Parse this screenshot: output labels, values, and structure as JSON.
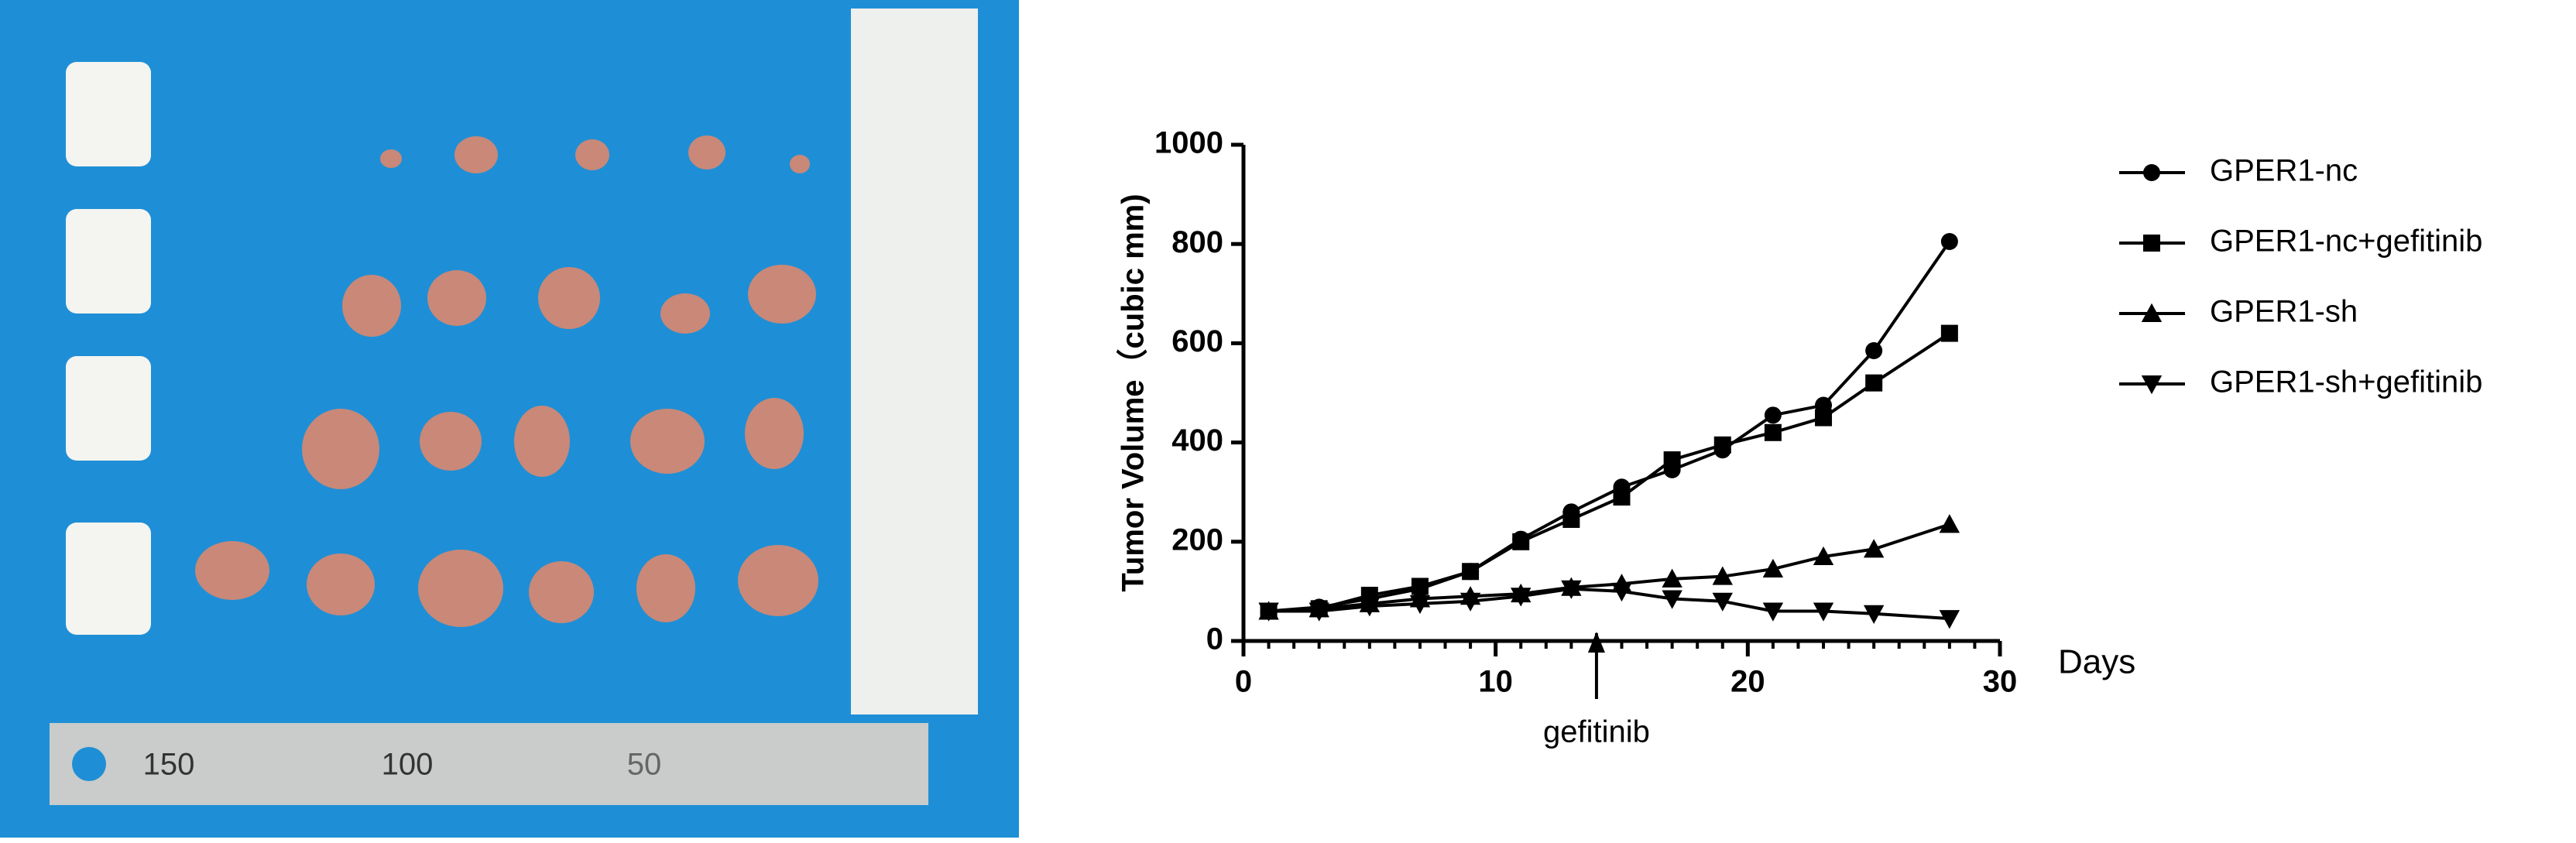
{
  "photo": {
    "ruler_labels": [
      "150",
      "100",
      "50"
    ]
  },
  "chart_data": {
    "type": "line",
    "ylabel": "Tumor Volume（cubic mm)",
    "xlabel": "Days",
    "annotation": {
      "text": "gefitinib",
      "x": 14
    },
    "x": [
      1,
      3,
      5,
      7,
      9,
      11,
      13,
      15,
      17,
      19,
      21,
      23,
      25,
      28
    ],
    "series": [
      {
        "name": "GPER1-nc",
        "color": "#000000",
        "marker": "circle",
        "values": [
          60,
          68,
          85,
          105,
          140,
          205,
          260,
          310,
          345,
          385,
          455,
          475,
          585,
          805
        ]
      },
      {
        "name": "GPER1-nc+gefitinib",
        "color": "#000000",
        "marker": "square",
        "values": [
          60,
          65,
          92,
          110,
          140,
          200,
          245,
          290,
          365,
          395,
          420,
          450,
          520,
          620
        ]
      },
      {
        "name": "GPER1-sh",
        "color": "#000000",
        "marker": "triangle-up",
        "values": [
          60,
          65,
          75,
          85,
          90,
          95,
          108,
          115,
          125,
          130,
          145,
          170,
          185,
          235
        ]
      },
      {
        "name": "GPER1-sh+gefitinib",
        "color": "#000000",
        "marker": "triangle-down",
        "values": [
          60,
          60,
          70,
          75,
          80,
          90,
          105,
          100,
          85,
          80,
          60,
          60,
          55,
          45
        ]
      }
    ],
    "xlim": [
      0,
      30
    ],
    "xticks": [
      0,
      10,
      20,
      30
    ],
    "ylim": [
      0,
      1000
    ],
    "yticks": [
      0,
      200,
      400,
      600,
      800,
      1000
    ],
    "grid": false,
    "legend": "right"
  }
}
